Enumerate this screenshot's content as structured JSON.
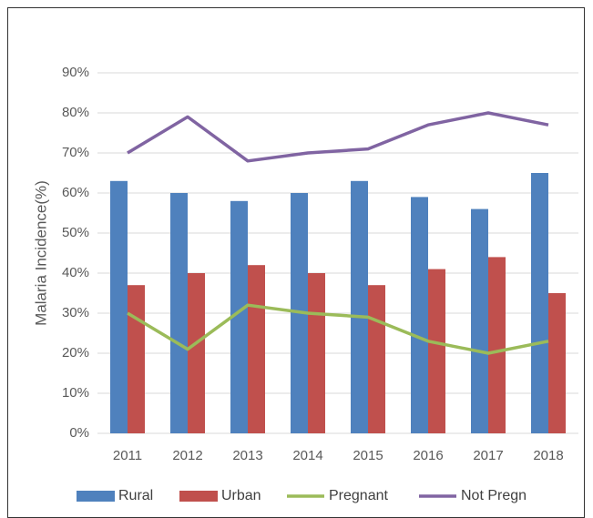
{
  "chart_data": {
    "type": "bar",
    "y_label": "Malaria Incidence(%)",
    "categories": [
      "2011",
      "2012",
      "2013",
      "2014",
      "2015",
      "2016",
      "2017",
      "2018"
    ],
    "series": [
      {
        "name": "Rural",
        "type": "bar",
        "color": "#4f81bd",
        "values": [
          63,
          60,
          58,
          60,
          63,
          59,
          56,
          65
        ]
      },
      {
        "name": "Urban",
        "type": "bar",
        "color": "#c0504d",
        "values": [
          37,
          40,
          42,
          40,
          37,
          41,
          44,
          35
        ]
      },
      {
        "name": "Pregnant",
        "type": "line",
        "color": "#9bbb59",
        "values": [
          30,
          21,
          32,
          30,
          29,
          23,
          20,
          23
        ]
      },
      {
        "name": "Not Pregn",
        "type": "line",
        "color": "#8064a2",
        "values": [
          70,
          79,
          68,
          70,
          71,
          77,
          80,
          77
        ]
      }
    ],
    "ylim": [
      0,
      90
    ],
    "yticks": [
      {
        "value": 0,
        "label": "0%"
      },
      {
        "value": 10,
        "label": "10%"
      },
      {
        "value": 20,
        "label": "20%"
      },
      {
        "value": 30,
        "label": "30%"
      },
      {
        "value": 40,
        "label": "40%"
      },
      {
        "value": 50,
        "label": "50%"
      },
      {
        "value": 60,
        "label": "60%"
      },
      {
        "value": 70,
        "label": "70%"
      },
      {
        "value": 80,
        "label": "80%"
      },
      {
        "value": 90,
        "label": "90%"
      }
    ],
    "grid": true,
    "legend": "bottom"
  }
}
